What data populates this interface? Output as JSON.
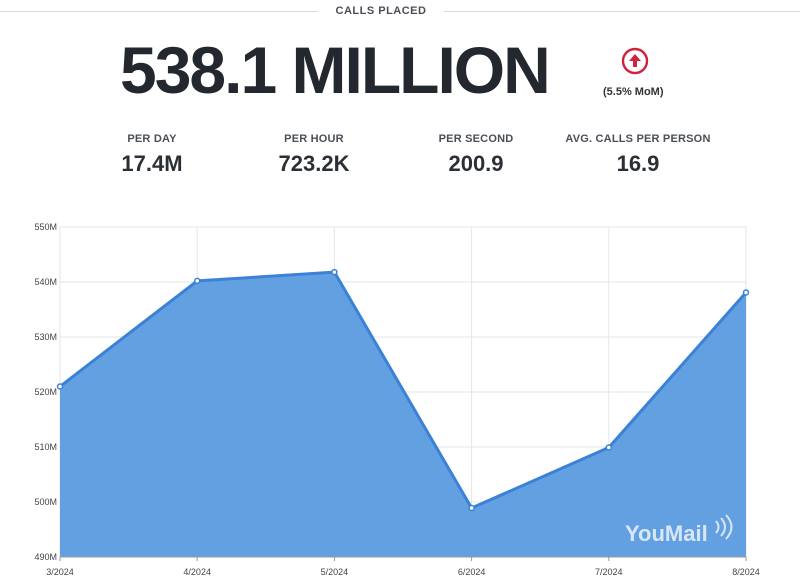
{
  "header": {
    "section_title": "CALLS PLACED",
    "headline": "538.1 MILLION",
    "trend_icon": "up-arrow-circle-icon",
    "trend_color": "#d0223a",
    "trend_text": "(5.5% MoM)"
  },
  "stats": [
    {
      "label": "PER DAY",
      "value": "17.4M"
    },
    {
      "label": "PER HOUR",
      "value": "723.2K"
    },
    {
      "label": "PER SECOND",
      "value": "200.9"
    },
    {
      "label": "AVG. CALLS PER PERSON",
      "value": "16.9"
    }
  ],
  "watermark": "YouMail",
  "chart_data": {
    "type": "area",
    "categories": [
      "3/2024",
      "4/2024",
      "5/2024",
      "6/2024",
      "7/2024",
      "8/2024"
    ],
    "values": [
      521,
      540.2,
      541.8,
      498.9,
      509.9,
      538.1
    ],
    "ylim": [
      490,
      550
    ],
    "yticks": [
      490,
      500,
      510,
      520,
      530,
      540,
      550
    ],
    "ytick_labels": [
      "490M",
      "500M",
      "510M",
      "520M",
      "530M",
      "540M",
      "550M"
    ],
    "grid": true,
    "fill_color": "#5b9be0",
    "line_color": "#3b82d6",
    "title": "",
    "xlabel": "",
    "ylabel": ""
  }
}
